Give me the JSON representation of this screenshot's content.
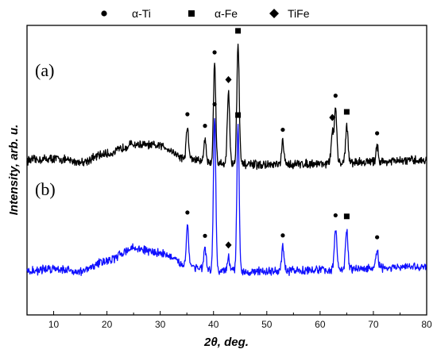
{
  "chart_data": {
    "type": "line",
    "xlabel": "2θ, deg.",
    "ylabel": "Intensity, arb. u.",
    "xlim": [
      5,
      80
    ],
    "xticks": [
      "10",
      "20",
      "30",
      "40",
      "50",
      "60",
      "70",
      "80"
    ],
    "grid": false,
    "legend_position": "top",
    "legend": [
      {
        "label": "α-Ti",
        "marker": "circle"
      },
      {
        "label": "α-Fe",
        "marker": "square"
      },
      {
        "label": "TiFe",
        "marker": "diamond"
      }
    ],
    "series": [
      {
        "panel": "(a)",
        "color": "#000000",
        "baseline_norm": [
          [
            5,
            0.05
          ],
          [
            10,
            0.06
          ],
          [
            15,
            0.04
          ],
          [
            20,
            0.09
          ],
          [
            25,
            0.15
          ],
          [
            30,
            0.14
          ],
          [
            35,
            0.06
          ],
          [
            40,
            0.03
          ],
          [
            50,
            0.02
          ],
          [
            60,
            0.03
          ],
          [
            70,
            0.04
          ],
          [
            80,
            0.05
          ]
        ],
        "peaks": [
          {
            "x": 35.1,
            "height": 0.2,
            "phase": "α-Ti"
          },
          {
            "x": 38.4,
            "height": 0.15,
            "phase": "α-Ti"
          },
          {
            "x": 40.2,
            "height": 0.62,
            "phase": "α-Ti"
          },
          {
            "x": 42.8,
            "height": 0.45,
            "phase": "TiFe"
          },
          {
            "x": 44.6,
            "height": 0.76,
            "phase": "α-Fe"
          },
          {
            "x": 53.0,
            "height": 0.14,
            "phase": "α-Ti"
          },
          {
            "x": 62.3,
            "height": 0.2,
            "phase": "TiFe"
          },
          {
            "x": 62.9,
            "height": 0.34,
            "phase": "α-Ti"
          },
          {
            "x": 65.0,
            "height": 0.24,
            "phase": "α-Fe"
          },
          {
            "x": 70.7,
            "height": 0.1,
            "phase": "α-Ti"
          }
        ]
      },
      {
        "panel": "(b)",
        "color": "#1010ff",
        "baseline_norm": [
          [
            5,
            0.05
          ],
          [
            10,
            0.07
          ],
          [
            15,
            0.05
          ],
          [
            20,
            0.12
          ],
          [
            25,
            0.2
          ],
          [
            30,
            0.17
          ],
          [
            35,
            0.09
          ],
          [
            40,
            0.05
          ],
          [
            50,
            0.05
          ],
          [
            60,
            0.06
          ],
          [
            70,
            0.07
          ],
          [
            80,
            0.08
          ]
        ],
        "peaks": [
          {
            "x": 35.1,
            "height": 0.26,
            "phase": "α-Ti"
          },
          {
            "x": 38.4,
            "height": 0.14,
            "phase": "α-Ti"
          },
          {
            "x": 40.2,
            "height": 1.0,
            "phase": "α-Ti"
          },
          {
            "x": 42.8,
            "height": 0.09,
            "phase": "TiFe"
          },
          {
            "x": 44.6,
            "height": 0.93,
            "phase": "α-Fe"
          },
          {
            "x": 53.0,
            "height": 0.15,
            "phase": "α-Ti"
          },
          {
            "x": 62.9,
            "height": 0.27,
            "phase": "α-Ti"
          },
          {
            "x": 65.0,
            "height": 0.26,
            "phase": "α-Fe"
          },
          {
            "x": 70.7,
            "height": 0.12,
            "phase": "α-Ti"
          }
        ]
      }
    ]
  }
}
